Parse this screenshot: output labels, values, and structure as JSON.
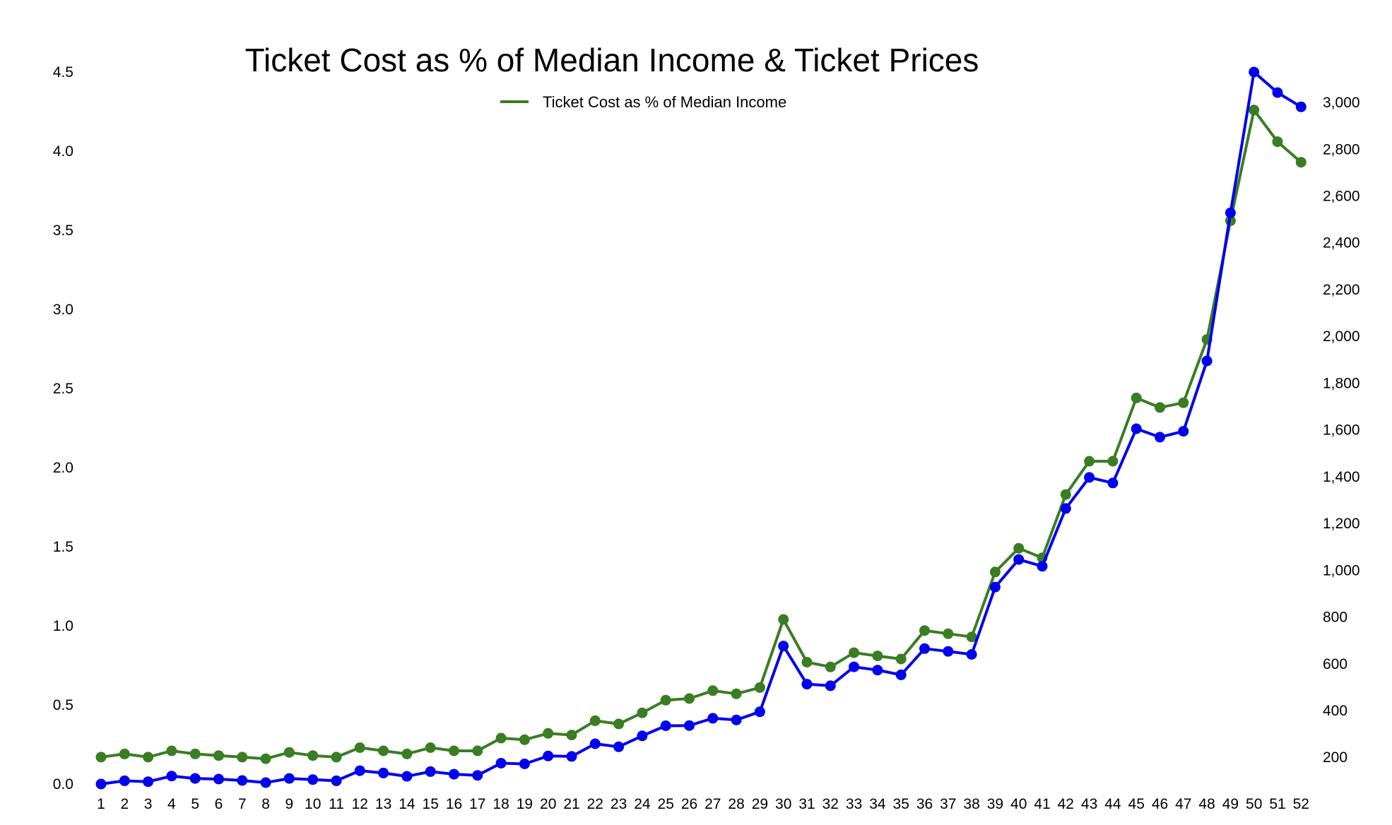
{
  "chart_data": {
    "type": "line",
    "title": "Ticket Cost as % of Median Income & Ticket Prices",
    "xlabel": "",
    "ylabel": "",
    "grid": false,
    "legend_placement": "top-center",
    "legend_entries": [
      "Ticket Cost as % of Median Income"
    ],
    "x": [
      1,
      2,
      3,
      4,
      5,
      6,
      7,
      8,
      9,
      10,
      11,
      12,
      13,
      14,
      15,
      16,
      17,
      18,
      19,
      20,
      21,
      22,
      23,
      24,
      25,
      26,
      27,
      28,
      29,
      30,
      31,
      32,
      33,
      34,
      35,
      36,
      37,
      38,
      39,
      40,
      41,
      42,
      43,
      44,
      45,
      46,
      47,
      48,
      49,
      50,
      51,
      52
    ],
    "x_tick_labels": [
      "1",
      "2",
      "3",
      "4",
      "5",
      "6",
      "7",
      "8",
      "9",
      "10",
      "11",
      "12",
      "13",
      "14",
      "15",
      "16",
      "17",
      "18",
      "19",
      "20",
      "21",
      "22",
      "23",
      "24",
      "25",
      "26",
      "27",
      "28",
      "29",
      "30",
      "31",
      "32",
      "33",
      "34",
      "35",
      "36",
      "37",
      "38",
      "39",
      "40",
      "41",
      "42",
      "43",
      "44",
      "45",
      "46",
      "47",
      "48",
      "49",
      "50",
      "51",
      "52"
    ],
    "y_left": {
      "ylim": [
        0,
        4.5
      ],
      "ticks": [
        0.0,
        0.5,
        1.0,
        1.5,
        2.0,
        2.5,
        3.0,
        3.5,
        4.0,
        4.5
      ],
      "tick_labels": [
        "0.0",
        "0.5",
        "1.0",
        "1.5",
        "2.0",
        "2.5",
        "3.0",
        "3.5",
        "4.0",
        "4.5"
      ]
    },
    "y_right": {
      "ylim": [
        86,
        3130
      ],
      "ticks": [
        200,
        400,
        600,
        800,
        1000,
        1200,
        1400,
        1600,
        1800,
        2000,
        2200,
        2400,
        2600,
        2800,
        3000
      ],
      "tick_labels": [
        "200",
        "400",
        "600",
        "800",
        "1,000",
        "1,200",
        "1,400",
        "1,600",
        "1,800",
        "2,000",
        "2,200",
        "2,400",
        "2,600",
        "2,800",
        "3,000"
      ]
    },
    "series": [
      {
        "name": "Ticket Cost as % of Median Income",
        "axis": "left",
        "color": "#3a7d23",
        "values": [
          0.17,
          0.19,
          0.17,
          0.21,
          0.19,
          0.18,
          0.17,
          0.16,
          0.2,
          0.18,
          0.17,
          0.23,
          0.21,
          0.19,
          0.23,
          0.21,
          0.21,
          0.29,
          0.28,
          0.32,
          0.31,
          0.4,
          0.38,
          0.45,
          0.53,
          0.54,
          0.59,
          0.57,
          0.61,
          1.04,
          0.77,
          0.74,
          0.83,
          0.81,
          0.79,
          0.97,
          0.95,
          0.93,
          1.34,
          1.49,
          1.43,
          1.83,
          2.04,
          2.04,
          2.44,
          2.38,
          2.41,
          2.81,
          3.56,
          4.26,
          4.06,
          3.93
        ]
      },
      {
        "axis": "right",
        "color": "#0000ee",
        "values": [
          86,
          100,
          96,
          120,
          110,
          107,
          101,
          92,
          110,
          105,
          100,
          143,
          133,
          119,
          139,
          128,
          123,
          175,
          172,
          206,
          204,
          258,
          245,
          292,
          335,
          336,
          367,
          360,
          395,
          676,
          513,
          506,
          587,
          573,
          553,
          665,
          653,
          640,
          928,
          1046,
          1017,
          1264,
          1397,
          1373,
          1605,
          1569,
          1594,
          1895,
          2528,
          3130,
          3042,
          2981
        ]
      }
    ]
  }
}
